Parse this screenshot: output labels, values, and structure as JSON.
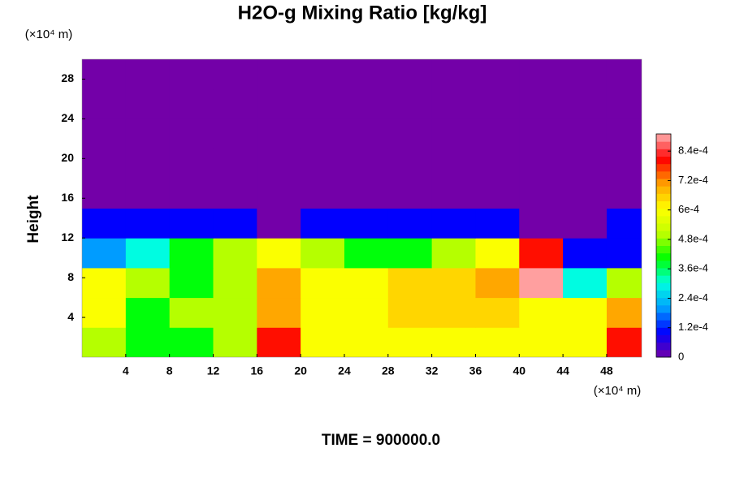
{
  "chart_data": {
    "type": "heatmap",
    "title": "H2O-g Mixing Ratio [kg/kg]",
    "y_label": "Height",
    "x_unit": "(×10⁴ m)",
    "y_unit": "(×10⁴ m)",
    "annotation": "TIME = 900000.0",
    "x": [
      2,
      6,
      10,
      14,
      18,
      22,
      26,
      30,
      34,
      38,
      42,
      46,
      50
    ],
    "y": [
      1.5,
      4.5,
      7.5,
      10.5,
      13.5,
      16.5,
      19.5,
      22.5,
      25.5,
      28.5
    ],
    "z": [
      [
        0.0005,
        0.0004,
        0.0004,
        0.0005,
        0.0008,
        0.0006,
        0.0006,
        0.0006,
        0.0006,
        0.0006,
        0.0006,
        0.0006,
        0.0008
      ],
      [
        0.0006,
        0.0004,
        0.0005,
        0.0005,
        0.0007,
        0.0006,
        0.0006,
        0.00065,
        0.00065,
        0.00065,
        0.0006,
        0.0006,
        0.0007
      ],
      [
        0.0006,
        0.0005,
        0.0004,
        0.0005,
        0.0007,
        0.0006,
        0.0006,
        0.00065,
        0.00065,
        0.0007,
        0.0009,
        0.0003,
        0.0005
      ],
      [
        0.0002,
        0.0003,
        0.0004,
        0.0005,
        0.0006,
        0.0005,
        0.0004,
        0.0004,
        0.0005,
        0.0006,
        0.0008,
        0.0001,
        0.0001
      ],
      [
        0.0001,
        0.0001,
        0.0001,
        0.0001,
        0,
        0.0001,
        0.0001,
        0.0001,
        0.0001,
        0.0001,
        0,
        0,
        0.0001
      ],
      [
        0,
        0,
        0,
        0,
        0,
        0,
        0,
        0,
        0,
        0,
        0,
        0,
        0
      ],
      [
        0,
        0,
        0,
        0,
        0,
        0,
        0,
        0,
        0,
        0,
        0,
        0,
        0
      ],
      [
        0,
        0,
        0,
        0,
        0,
        0,
        0,
        0,
        0,
        0,
        0,
        0,
        0
      ],
      [
        0,
        0,
        0,
        0,
        0,
        0,
        0,
        0,
        0,
        0,
        0,
        0,
        0
      ],
      [
        0,
        0,
        0,
        0,
        0,
        0,
        0,
        0,
        0,
        0,
        0,
        0,
        0
      ]
    ],
    "cell_size": [
      4,
      3
    ],
    "xlim": [
      0,
      51.2
    ],
    "ylim": [
      0,
      30
    ],
    "xticks": [
      4,
      8,
      12,
      16,
      20,
      24,
      28,
      32,
      36,
      40,
      44,
      48
    ],
    "yticks": [
      4,
      8,
      12,
      16,
      20,
      24,
      28
    ],
    "clim": [
      0,
      0.00091
    ],
    "cticks": [
      0,
      {
        "value": 0.00012,
        "label": "1.2e-4"
      },
      {
        "value": 0.00024,
        "label": "2.4e-4"
      },
      {
        "value": 0.00036,
        "label": "3.6e-4"
      },
      {
        "value": 0.00048,
        "label": "4.8e-4"
      },
      {
        "value": 0.0006,
        "label": "6e-4"
      },
      {
        "value": 0.00072,
        "label": "7.2e-4"
      },
      {
        "value": 0.00084,
        "label": "8.4e-4"
      }
    ],
    "colormap": [
      "#7300a8",
      "#0000ff",
      "#00a0ff",
      "#00ffe0",
      "#00ff00",
      "#c0ff00",
      "#ffff00",
      "#ffa000",
      "#ff0000",
      "#ffb0b0"
    ],
    "colorbar_levels": 30
  }
}
